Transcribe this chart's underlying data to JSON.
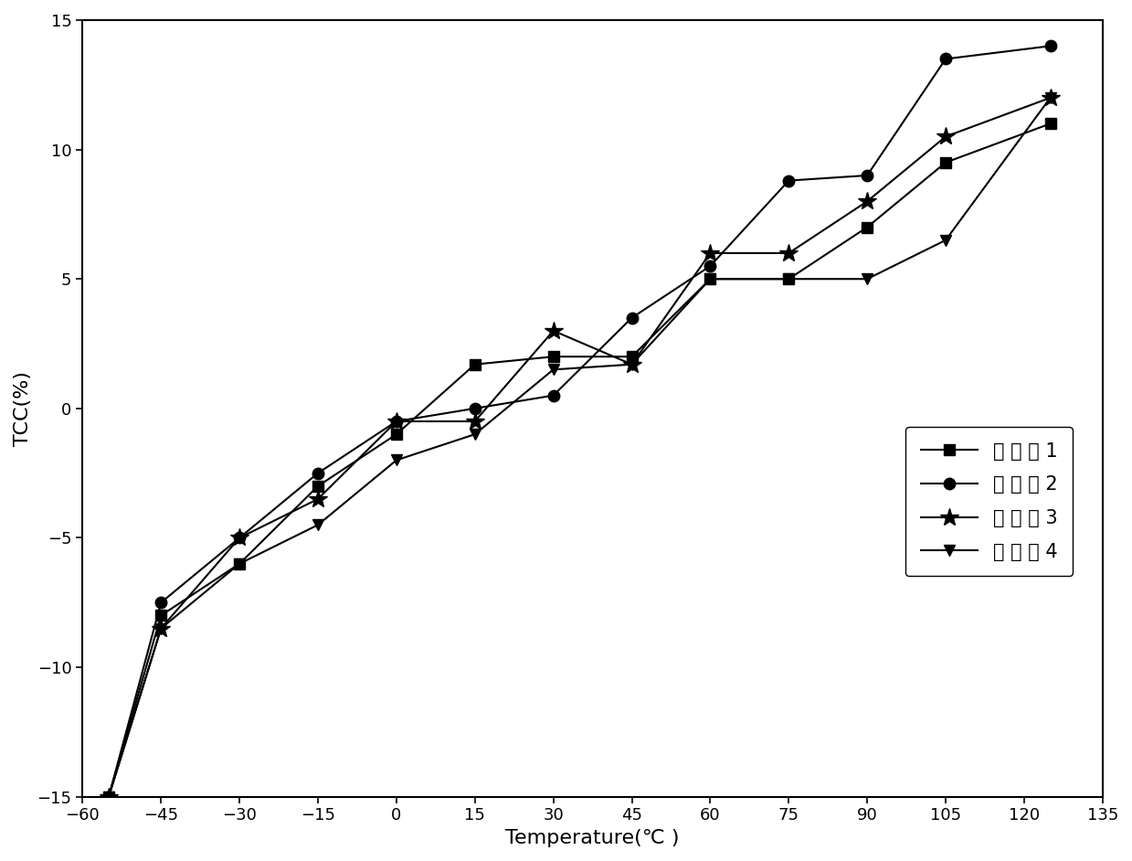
{
  "series": [
    {
      "label": "实 施 例 1",
      "marker": "s",
      "color": "#000000",
      "x": [
        -55,
        -45,
        -30,
        -15,
        0,
        15,
        30,
        45,
        60,
        75,
        90,
        105,
        125
      ],
      "y": [
        -15,
        -8,
        -6,
        -3,
        -1,
        1.7,
        2,
        2,
        5,
        5,
        7,
        9.5,
        11
      ]
    },
    {
      "label": "实 施 例 2",
      "marker": "o",
      "color": "#000000",
      "x": [
        -55,
        -45,
        -30,
        -15,
        0,
        15,
        30,
        45,
        60,
        75,
        90,
        105,
        125
      ],
      "y": [
        -15,
        -7.5,
        -5,
        -2.5,
        -0.5,
        0,
        0.5,
        3.5,
        5.5,
        8.8,
        9,
        13.5,
        14
      ]
    },
    {
      "label": "实 施 例 3",
      "marker": "*",
      "color": "#000000",
      "x": [
        -55,
        -45,
        -30,
        -15,
        0,
        15,
        30,
        45,
        60,
        75,
        90,
        105,
        125
      ],
      "y": [
        -15,
        -8.5,
        -5,
        -3.5,
        -0.5,
        -0.5,
        3,
        1.7,
        6,
        6,
        8,
        10.5,
        12
      ]
    },
    {
      "label": "实 施 例 4",
      "marker": "v",
      "color": "#000000",
      "x": [
        -55,
        -45,
        -30,
        -15,
        0,
        15,
        30,
        45,
        60,
        75,
        90,
        105,
        125
      ],
      "y": [
        -15,
        -8.5,
        -6,
        -4.5,
        -2,
        -1,
        1.5,
        1.7,
        5,
        5,
        5,
        6.5,
        12
      ]
    }
  ],
  "xlabel": "Temperature(℃ )",
  "ylabel": "TCC(%)",
  "xlim": [
    -60,
    135
  ],
  "ylim": [
    -15,
    15
  ],
  "xticks": [
    -60,
    -45,
    -30,
    -15,
    0,
    15,
    30,
    45,
    60,
    75,
    90,
    105,
    120,
    135
  ],
  "yticks": [
    -15,
    -10,
    -5,
    0,
    5,
    10,
    15
  ],
  "background_color": "#ffffff",
  "marker_sizes": {
    "s": 9,
    "o": 9,
    "*": 15,
    "v": 9
  }
}
